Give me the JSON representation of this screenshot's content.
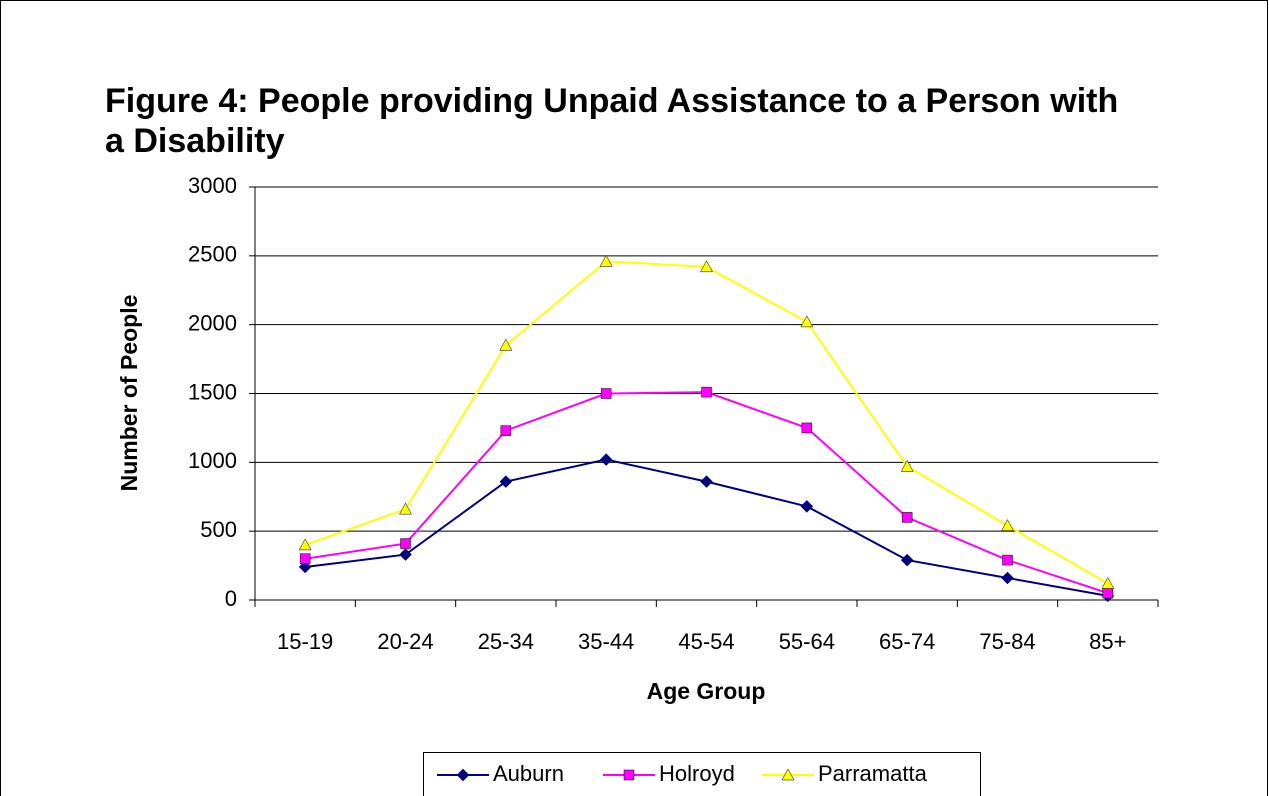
{
  "chart_data": {
    "type": "line",
    "title": "Figure 4: People providing Unpaid Assistance to a Person with a Disability",
    "x_label": "Age Group",
    "y_label": "Number of People",
    "categories": [
      "15-19",
      "20-24",
      "25-34",
      "35-44",
      "45-54",
      "55-64",
      "65-74",
      "75-84",
      "85+"
    ],
    "series": [
      {
        "name": "Auburn",
        "color": "#000080",
        "marker": "diamond",
        "values": [
          240,
          330,
          860,
          1020,
          860,
          680,
          290,
          160,
          30
        ]
      },
      {
        "name": "Holroyd",
        "color": "#ff00ff",
        "marker": "square",
        "values": [
          300,
          410,
          1230,
          1500,
          1510,
          1250,
          600,
          290,
          50
        ]
      },
      {
        "name": "Parramatta",
        "color": "#ffff00",
        "marker": "triangle",
        "values": [
          400,
          660,
          1850,
          2460,
          2420,
          2020,
          970,
          540,
          120
        ]
      }
    ],
    "ylim": [
      0,
      3000
    ],
    "yticks": [
      0,
      500,
      1000,
      1500,
      2000,
      2500,
      3000
    ],
    "grid": true,
    "legend": "bottom"
  }
}
